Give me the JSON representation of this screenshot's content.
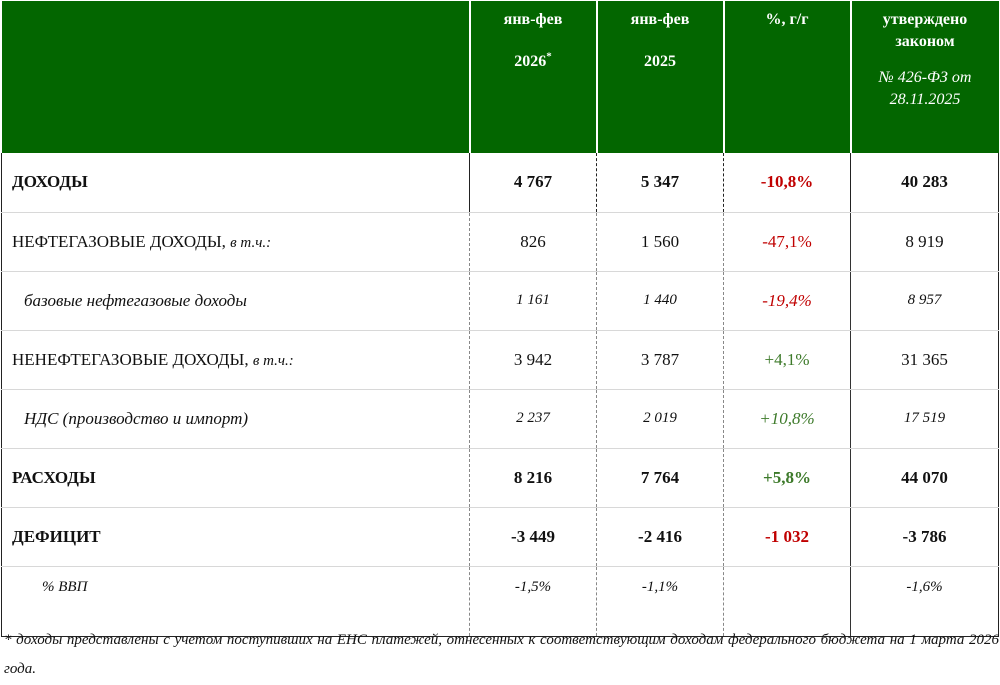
{
  "header": {
    "col1_line1": "янв-фев",
    "col1_year": "2026",
    "col1_mark": "*",
    "col2_line1": "янв-фев",
    "col2_year": "2025",
    "col3": "%, г/г",
    "col4_line1": "утверждено",
    "col4_line2": "законом",
    "col4_law1": "№ 426-ФЗ от",
    "col4_law2": "28.11.2025"
  },
  "rows": [
    {
      "label": "ДОХОДЫ",
      "qual": "",
      "v2026": "4 767",
      "v2025": "5 347",
      "yoy": "-10,8%",
      "law": "40 283"
    },
    {
      "label": "НЕФТЕГАЗОВЫЕ ДОХОДЫ,",
      "qual": "в т.ч.:",
      "v2026": "826",
      "v2025": "1 560",
      "yoy": "-47,1%",
      "law": "8 919"
    },
    {
      "label": "базовые нефтегазовые доходы",
      "qual": "",
      "v2026": "1 161",
      "v2025": "1 440",
      "yoy": "-19,4%",
      "law": "8 957"
    },
    {
      "label": "НЕНЕФТЕГАЗОВЫЕ ДОХОДЫ,",
      "qual": "в т.ч.:",
      "v2026": "3 942",
      "v2025": "3 787",
      "yoy": "+4,1%",
      "law": "31 365"
    },
    {
      "label": "НДС (производство и импорт)",
      "qual": "",
      "v2026": "2 237",
      "v2025": "2 019",
      "yoy": "+10,8%",
      "law": "17 519"
    },
    {
      "label": "РАСХОДЫ",
      "qual": "",
      "v2026": "8 216",
      "v2025": "7 764",
      "yoy": "+5,8%",
      "law": "44 070"
    },
    {
      "label": "ДЕФИЦИТ",
      "qual": "",
      "v2026": "-3 449",
      "v2025": "-2 416",
      "yoy": "-1 032",
      "law": "-3 786"
    },
    {
      "label": "% ВВП",
      "qual": "",
      "v2026": "-1,5%",
      "v2025": "-1,1%",
      "yoy": "",
      "law": "-1,6%"
    }
  ],
  "colors": {
    "header_bg": "#036600",
    "negative": "#c00000",
    "positive": "#3d7a2a"
  },
  "footnote": "* доходы представлены с учетом поступивших на ЕНС платежей, отнесенных к соответствующим доходам федерального бюджета на 1 марта 2026 года."
}
